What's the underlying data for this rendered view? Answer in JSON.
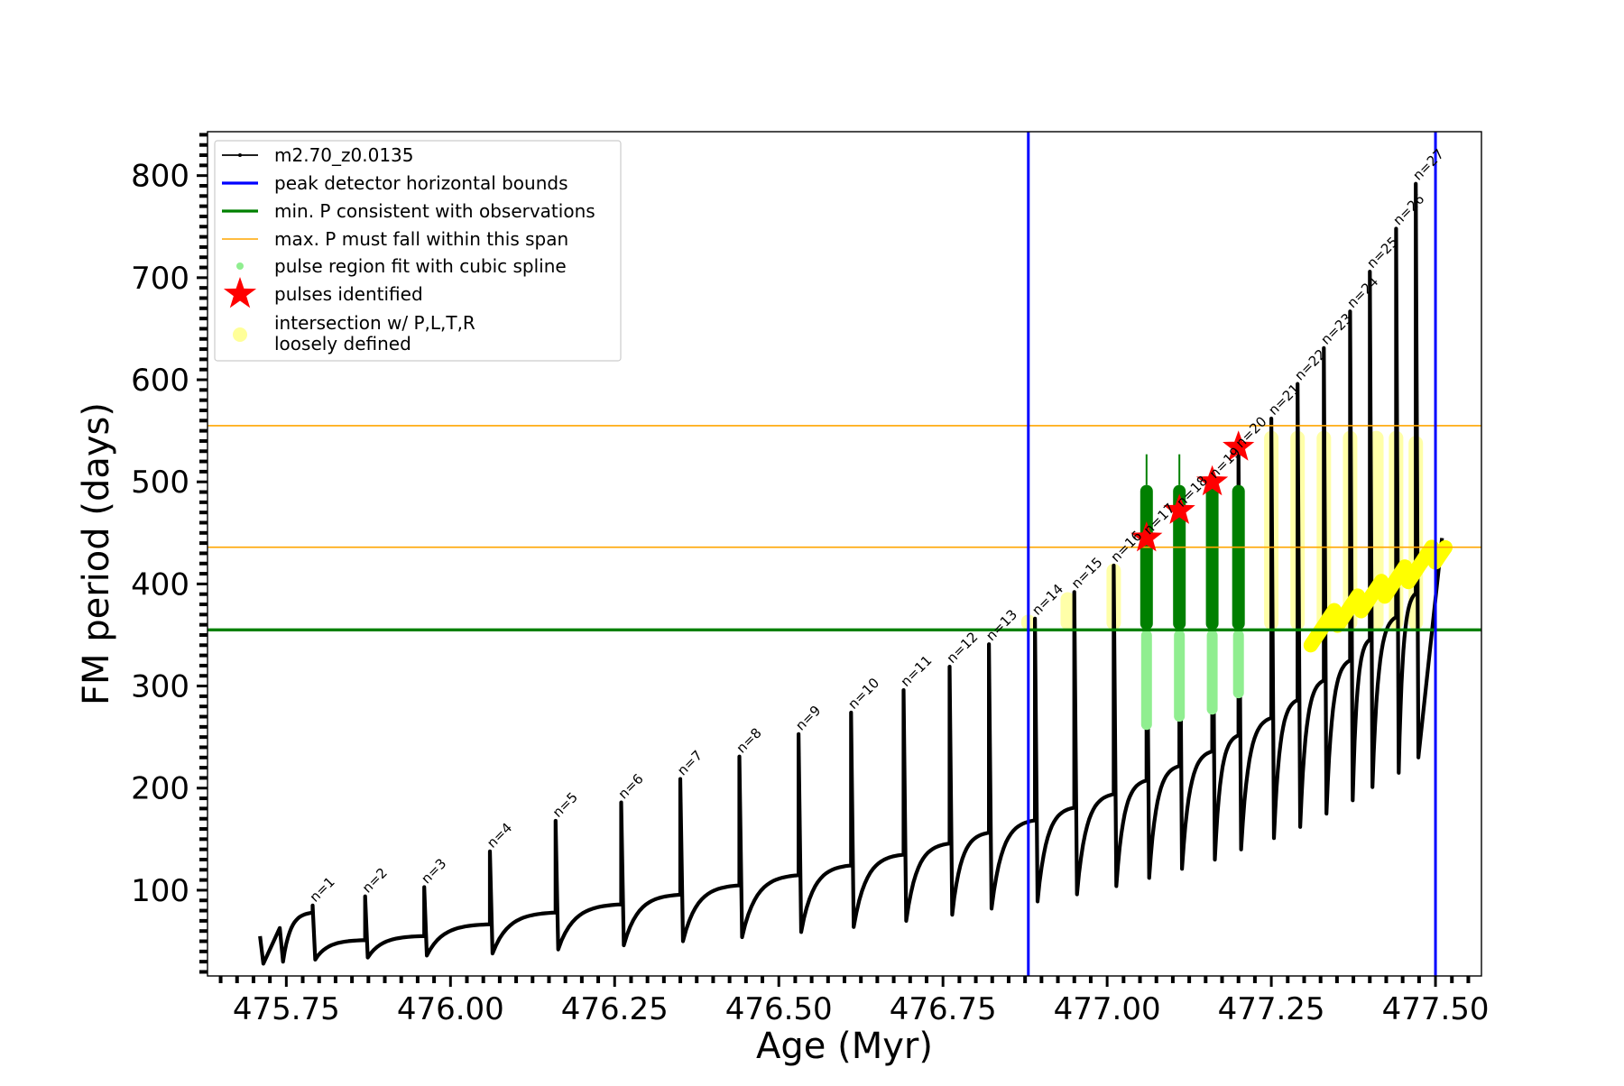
{
  "chart_data": {
    "type": "line",
    "xlabel": "Age (Myr)",
    "ylabel": "FM period (days)",
    "xlim": [
      475.63,
      477.57
    ],
    "ylim": [
      16,
      843
    ],
    "x_ticks": [
      475.75,
      476.0,
      476.25,
      476.5,
      476.75,
      477.0,
      477.25,
      477.5
    ],
    "x_tick_labels": [
      "475.75",
      "476.00",
      "476.25",
      "476.50",
      "476.75",
      "477.00",
      "477.25",
      "477.50"
    ],
    "x_minor_step": 0.025,
    "y_ticks": [
      100,
      200,
      300,
      400,
      500,
      600,
      700,
      800
    ],
    "y_tick_labels": [
      "100",
      "200",
      "300",
      "400",
      "500",
      "600",
      "700",
      "800"
    ],
    "y_minor_step": 10,
    "grid": false,
    "legend_position": "top-left",
    "legend": [
      {
        "label": "m2.70_z0.0135",
        "style": "track"
      },
      {
        "label": "peak detector horizontal bounds",
        "style": "blue-line"
      },
      {
        "label": "min. P consistent with observations",
        "style": "green-line"
      },
      {
        "label": "max. P must fall within this span",
        "style": "orange-line"
      },
      {
        "label": "pulse region fit with cubic spline",
        "style": "green-dot"
      },
      {
        "label": "pulses identified",
        "style": "red-star"
      },
      {
        "label": "intersection w/ P,L,T,R",
        "label2": "loosely defined",
        "style": "yellow-dot"
      }
    ],
    "vertical_bounds": [
      476.88,
      477.5
    ],
    "min_period": 355,
    "max_period_span": [
      436,
      555
    ],
    "pulses": [
      {
        "n": 1,
        "age": 475.79,
        "peak": 85,
        "dip": 32
      },
      {
        "n": 2,
        "age": 475.87,
        "peak": 94,
        "dip": 34
      },
      {
        "n": 3,
        "age": 475.96,
        "peak": 103,
        "dip": 36
      },
      {
        "n": 4,
        "age": 476.06,
        "peak": 138,
        "dip": 38
      },
      {
        "n": 5,
        "age": 476.16,
        "peak": 168,
        "dip": 42
      },
      {
        "n": 6,
        "age": 476.26,
        "peak": 186,
        "dip": 46
      },
      {
        "n": 7,
        "age": 476.35,
        "peak": 209,
        "dip": 50
      },
      {
        "n": 8,
        "age": 476.44,
        "peak": 231,
        "dip": 54
      },
      {
        "n": 9,
        "age": 476.53,
        "peak": 253,
        "dip": 59
      },
      {
        "n": 10,
        "age": 476.61,
        "peak": 274,
        "dip": 64
      },
      {
        "n": 11,
        "age": 476.69,
        "peak": 296,
        "dip": 70
      },
      {
        "n": 12,
        "age": 476.76,
        "peak": 319,
        "dip": 76
      },
      {
        "n": 13,
        "age": 476.82,
        "peak": 341,
        "dip": 82
      },
      {
        "n": 14,
        "age": 476.89,
        "peak": 366,
        "dip": 89
      },
      {
        "n": 15,
        "age": 476.95,
        "peak": 392,
        "dip": 96
      },
      {
        "n": 16,
        "age": 477.01,
        "peak": 418,
        "dip": 104
      },
      {
        "n": 17,
        "age": 477.06,
        "peak": 445,
        "dip": 112
      },
      {
        "n": 18,
        "age": 477.11,
        "peak": 472,
        "dip": 121
      },
      {
        "n": 19,
        "age": 477.16,
        "peak": 500,
        "dip": 130
      },
      {
        "n": 20,
        "age": 477.2,
        "peak": 530,
        "dip": 140
      },
      {
        "n": 21,
        "age": 477.25,
        "peak": 562,
        "dip": 151
      },
      {
        "n": 22,
        "age": 477.29,
        "peak": 596,
        "dip": 162
      },
      {
        "n": 23,
        "age": 477.33,
        "peak": 631,
        "dip": 175
      },
      {
        "n": 24,
        "age": 477.37,
        "peak": 667,
        "dip": 188
      },
      {
        "n": 25,
        "age": 477.4,
        "peak": 706,
        "dip": 201
      },
      {
        "n": 26,
        "age": 477.44,
        "peak": 748,
        "dip": 215
      },
      {
        "n": 27,
        "age": 477.47,
        "peak": 792,
        "dip": 230
      }
    ],
    "track_start": {
      "age": 475.71,
      "period": 55
    },
    "track_end": {
      "age": 477.51,
      "period": 445
    },
    "spline_fits": [
      {
        "age": 477.06,
        "low": 257,
        "high": 527,
        "dense_low": 355,
        "dense_high": 497
      },
      {
        "age": 477.11,
        "low": 265,
        "high": 527,
        "dense_low": 355,
        "dense_high": 497
      },
      {
        "age": 477.16,
        "low": 272,
        "high": 513,
        "dense_low": 355,
        "dense_high": 497
      },
      {
        "age": 477.2,
        "low": 288,
        "high": 497,
        "dense_low": 355,
        "dense_high": 497
      }
    ],
    "loose_intersections": [
      {
        "age": 476.88,
        "low": 355,
        "high": 370
      },
      {
        "age": 476.94,
        "low": 355,
        "high": 392
      },
      {
        "age": 477.01,
        "low": 355,
        "high": 420
      },
      {
        "age": 477.25,
        "low": 355,
        "high": 550
      },
      {
        "age": 477.29,
        "low": 355,
        "high": 550
      },
      {
        "age": 477.33,
        "low": 355,
        "high": 550
      },
      {
        "age": 477.37,
        "low": 355,
        "high": 550
      },
      {
        "age": 477.41,
        "low": 355,
        "high": 550
      },
      {
        "age": 477.44,
        "low": 355,
        "high": 550
      },
      {
        "age": 477.47,
        "low": 355,
        "high": 545
      }
    ],
    "pulses_identified": [
      {
        "age": 477.06,
        "period": 445
      },
      {
        "age": 477.11,
        "period": 472
      },
      {
        "age": 477.16,
        "period": 500
      },
      {
        "age": 477.2,
        "period": 534
      }
    ],
    "colors": {
      "track": "#000000",
      "bounds": "#0000ff",
      "min_period": "#008000",
      "max_period": "#ffa500",
      "spline_light": "#90ee90",
      "spline_dark": "#008000",
      "pulses": "#ff0000",
      "intersection_loose": "#ffff99",
      "intersection": "#ffff00"
    }
  }
}
